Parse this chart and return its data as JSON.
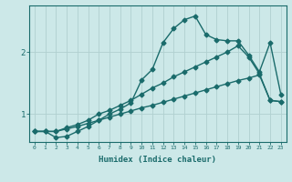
{
  "background_color": "#cce8e8",
  "grid_color": "#b0d0d0",
  "line_color": "#1a6b6b",
  "xlabel": "Humidex (Indice chaleur)",
  "xlim": [
    -0.5,
    23.5
  ],
  "ylim": [
    0.55,
    2.75
  ],
  "yticks": [
    1,
    2
  ],
  "xticks": [
    0,
    1,
    2,
    3,
    4,
    5,
    6,
    7,
    8,
    9,
    10,
    11,
    12,
    13,
    14,
    15,
    16,
    17,
    18,
    19,
    20,
    21,
    22,
    23
  ],
  "line_straight_x": [
    0,
    1,
    2,
    3,
    4,
    5,
    6,
    7,
    8,
    9,
    10,
    11,
    12,
    13,
    14,
    15,
    16,
    17,
    18,
    19,
    20,
    21,
    22,
    23
  ],
  "line_straight_y": [
    0.72,
    0.72,
    0.72,
    0.76,
    0.8,
    0.85,
    0.9,
    0.95,
    1.0,
    1.05,
    1.1,
    1.14,
    1.19,
    1.24,
    1.29,
    1.34,
    1.39,
    1.44,
    1.49,
    1.54,
    1.58,
    1.63,
    1.22,
    1.2
  ],
  "line_mid_x": [
    0,
    1,
    2,
    3,
    4,
    5,
    6,
    7,
    8,
    9,
    10,
    11,
    12,
    13,
    14,
    15,
    16,
    17,
    18,
    19,
    20,
    21,
    22,
    23
  ],
  "line_mid_y": [
    0.72,
    0.72,
    0.72,
    0.78,
    0.83,
    0.9,
    1.0,
    1.06,
    1.14,
    1.22,
    1.32,
    1.42,
    1.5,
    1.6,
    1.68,
    1.76,
    1.84,
    1.92,
    2.0,
    2.1,
    1.92,
    1.65,
    1.22,
    1.2
  ],
  "line_peak_x": [
    0,
    1,
    2,
    3,
    4,
    5,
    6,
    7,
    8,
    9,
    10,
    11,
    12,
    13,
    14,
    15,
    16,
    17,
    18,
    19,
    20,
    21,
    22,
    23
  ],
  "line_peak_y": [
    0.72,
    0.72,
    0.62,
    0.64,
    0.72,
    0.8,
    0.9,
    1.0,
    1.08,
    1.18,
    1.55,
    1.72,
    2.15,
    2.38,
    2.52,
    2.58,
    2.28,
    2.2,
    2.18,
    2.18,
    1.95,
    1.68,
    2.15,
    1.32
  ],
  "marker_size": 2.5,
  "linewidth": 1.0,
  "figwidth": 3.2,
  "figheight": 2.0,
  "dpi": 100
}
